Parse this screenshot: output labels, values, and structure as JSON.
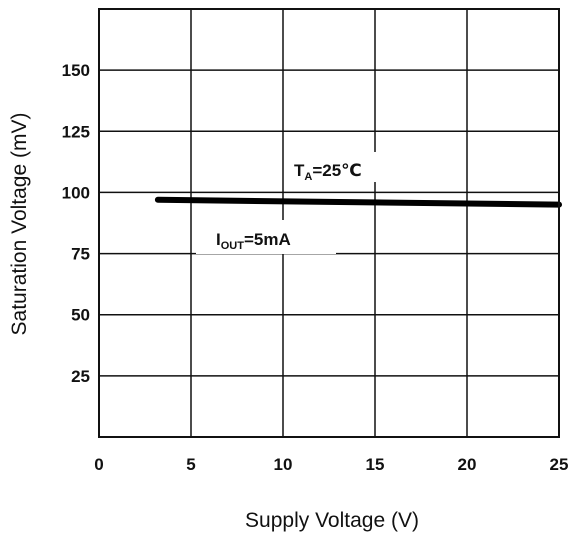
{
  "chart_data": {
    "type": "line",
    "title": "",
    "xlabel": "Supply Voltage (V)",
    "ylabel": "Saturation Voltage (mV)",
    "xlim": [
      0,
      25
    ],
    "ylim": [
      0,
      175
    ],
    "x_ticks": [
      0,
      5,
      10,
      15,
      20,
      25
    ],
    "x_tick_labels": [
      "0",
      "5",
      "10",
      "15",
      "20",
      "25"
    ],
    "y_ticks": [
      25,
      50,
      75,
      100,
      125,
      150
    ],
    "y_tick_labels": [
      "25",
      "50",
      "75",
      "100",
      "125",
      "150"
    ],
    "grid": true,
    "series": [
      {
        "x": [
          3.2,
          25
        ],
        "values": [
          97,
          95
        ],
        "color": "#000000"
      }
    ],
    "annotations": {
      "temp": {
        "main": "T",
        "sub": "A",
        "rest": "=25℃"
      },
      "current": {
        "main": "I",
        "sub": "OUT",
        "rest": "=5mA"
      }
    }
  }
}
